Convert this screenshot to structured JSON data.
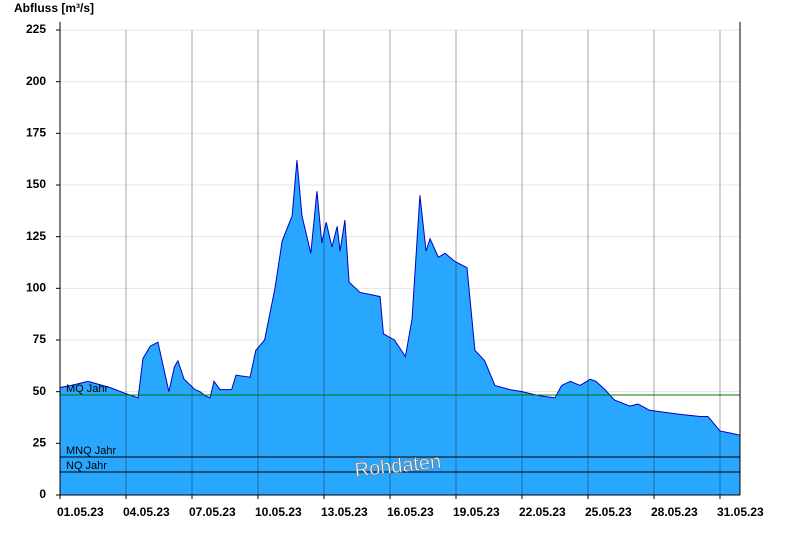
{
  "chart_data": {
    "type": "area",
    "y_label": "Abfluss [m³/s]",
    "watermark": "Rohdaten",
    "color": "#29a7ff",
    "line_color": "#0000c0",
    "x": [
      0,
      0.5,
      1.27,
      2.27,
      3,
      3.55,
      3.77,
      4.1,
      4.45,
      4.7,
      4.95,
      5.2,
      5.36,
      5.64,
      6.14,
      6.36,
      6.6,
      6.82,
      7,
      7.27,
      7.8,
      8,
      8.64,
      8.9,
      9.3,
      9.77,
      10.1,
      10.55,
      10.77,
      11,
      11.4,
      11.68,
      11.9,
      12.1,
      12.36,
      12.6,
      12.73,
      12.95,
      13.14,
      13.64,
      14.1,
      14.55,
      14.7,
      15.2,
      15.7,
      16,
      16.36,
      16.64,
      16.82,
      17.2,
      17.5,
      17.95,
      18.5,
      18.86,
      19.3,
      19.77,
      20.45,
      21,
      21.8,
      22.5,
      22.8,
      23.2,
      23.64,
      24.1,
      24.36,
      24.77,
      25.2,
      25.9,
      26.27,
      26.8,
      27.5,
      28.2,
      29.1,
      29.45,
      30,
      30.45,
      30.9
    ],
    "values": [
      52,
      53,
      55,
      52,
      49,
      47,
      66,
      72,
      74,
      62,
      50,
      62,
      65,
      56,
      51,
      50,
      48,
      47,
      55,
      51,
      51,
      58,
      57,
      70,
      75,
      100,
      123,
      135,
      162,
      135,
      117,
      147,
      122,
      132,
      120,
      130,
      118,
      133,
      103,
      98,
      97,
      96,
      78,
      75,
      67,
      85,
      145,
      118,
      124,
      115,
      117,
      113,
      110,
      70,
      65,
      53,
      51,
      50,
      48,
      47,
      53,
      55,
      53,
      56,
      55,
      51,
      46,
      43,
      44,
      41,
      40,
      39,
      38,
      38,
      31,
      30,
      29
    ],
    "xlim": [
      0,
      31
    ],
    "xticks": [
      {
        "value": 0,
        "label": "01.05.23"
      },
      {
        "value": 3,
        "label": "04.05.23"
      },
      {
        "value": 6,
        "label": "07.05.23"
      },
      {
        "value": 9,
        "label": "10.05.23"
      },
      {
        "value": 12,
        "label": "13.05.23"
      },
      {
        "value": 15,
        "label": "16.05.23"
      },
      {
        "value": 18,
        "label": "19.05.23"
      },
      {
        "value": 21,
        "label": "22.05.23"
      },
      {
        "value": 24,
        "label": "25.05.23"
      },
      {
        "value": 27,
        "label": "28.05.23"
      },
      {
        "value": 30,
        "label": "31.05.23"
      }
    ],
    "ylim": [
      0,
      225
    ],
    "yticks": [
      0,
      25,
      50,
      75,
      100,
      125,
      150,
      175,
      200,
      225
    ],
    "grid": true,
    "reference_lines": [
      {
        "label": "MQ Jahr",
        "value": 48.4,
        "color": "#007a00"
      },
      {
        "label": "MNQ Jahr",
        "value": 18.4,
        "color": "#000000"
      },
      {
        "label": "NQ Jahr",
        "value": 11.1,
        "color": "#000000"
      }
    ]
  }
}
